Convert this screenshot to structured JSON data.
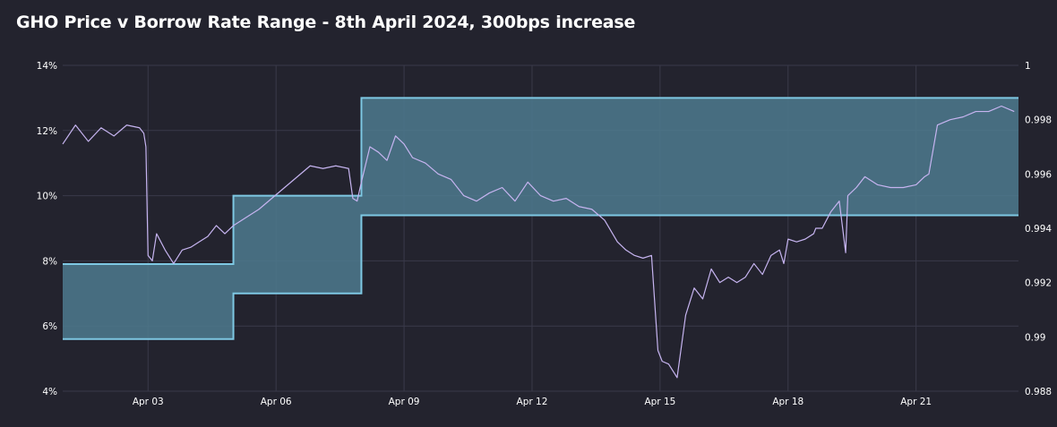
{
  "chart_data": {
    "type": "line",
    "title": "GHO Price v Borrow Rate Range - 8th April 2024, 300bps increase",
    "grid": true,
    "legend": "none",
    "x_tick_labels": [
      "Apr 03",
      "Apr 06",
      "Apr 09",
      "Apr 12",
      "Apr 15",
      "Apr 18",
      "Apr 21"
    ],
    "x_tick_days": [
      3,
      6,
      9,
      12,
      15,
      18,
      21
    ],
    "xlim_days": [
      1.0,
      23.4
    ],
    "left_axis": {
      "ylim": [
        0.04,
        0.14
      ],
      "ticks": [
        0.04,
        0.06,
        0.08,
        0.1,
        0.12,
        0.14
      ],
      "tick_labels": [
        "4%",
        "6%",
        "8%",
        "10%",
        "12%",
        "14%"
      ]
    },
    "right_axis": {
      "ylim": [
        0.988,
        1.0
      ],
      "ticks": [
        0.988,
        0.99,
        0.992,
        0.994,
        0.996,
        0.998,
        1.0
      ],
      "tick_labels": [
        "0.988",
        "0.99",
        "0.992",
        "0.994",
        "0.996",
        "0.998",
        "1"
      ]
    },
    "series": [
      {
        "type": "area-range",
        "axis": "left",
        "color": "#7ec8e3",
        "fill": "#4e7a8e",
        "x": [
          1.0,
          5.0,
          5.0,
          8.0,
          8.0,
          23.4
        ],
        "lower": [
          0.056,
          0.056,
          0.07,
          0.07,
          0.094,
          0.094
        ],
        "upper": [
          0.079,
          0.079,
          0.1,
          0.1,
          0.13,
          0.13
        ]
      },
      {
        "type": "line",
        "axis": "right",
        "color": "#c6b4f0",
        "x": [
          1.0,
          1.3,
          1.6,
          1.9,
          2.2,
          2.5,
          2.8,
          2.9,
          2.95,
          3.0,
          3.1,
          3.2,
          3.4,
          3.6,
          3.8,
          4.0,
          4.2,
          4.4,
          4.6,
          4.8,
          5.0,
          5.3,
          5.6,
          5.9,
          6.2,
          6.5,
          6.8,
          7.1,
          7.4,
          7.7,
          7.8,
          7.9,
          8.0,
          8.2,
          8.4,
          8.6,
          8.8,
          9.0,
          9.2,
          9.5,
          9.8,
          10.1,
          10.4,
          10.7,
          11.0,
          11.3,
          11.6,
          11.9,
          12.2,
          12.5,
          12.8,
          13.1,
          13.4,
          13.7,
          14.0,
          14.2,
          14.4,
          14.6,
          14.8,
          14.95,
          15.05,
          15.2,
          15.4,
          15.6,
          15.8,
          16.0,
          16.2,
          16.4,
          16.6,
          16.8,
          17.0,
          17.2,
          17.4,
          17.6,
          17.8,
          17.9,
          18.0,
          18.2,
          18.4,
          18.6,
          18.65,
          18.8,
          19.0,
          19.2,
          19.35,
          19.4,
          19.6,
          19.8,
          20.1,
          20.4,
          20.7,
          21.0,
          21.2,
          21.3,
          21.5,
          21.8,
          22.1,
          22.4,
          22.7,
          23.0,
          23.3
        ],
        "values": [
          0.9971,
          0.9978,
          0.9972,
          0.9977,
          0.9974,
          0.9978,
          0.9977,
          0.9975,
          0.997,
          0.993,
          0.9928,
          0.9938,
          0.9932,
          0.9927,
          0.9932,
          0.9933,
          0.9935,
          0.9937,
          0.9941,
          0.9938,
          0.9941,
          0.9944,
          0.9947,
          0.9951,
          0.9955,
          0.9959,
          0.9963,
          0.9962,
          0.9963,
          0.9962,
          0.9951,
          0.995,
          0.9957,
          0.997,
          0.9968,
          0.9965,
          0.9974,
          0.9971,
          0.9966,
          0.9964,
          0.996,
          0.9958,
          0.9952,
          0.995,
          0.9953,
          0.9955,
          0.995,
          0.9957,
          0.9952,
          0.995,
          0.9951,
          0.9948,
          0.9947,
          0.9943,
          0.9935,
          0.9932,
          0.993,
          0.9929,
          0.993,
          0.9895,
          0.9891,
          0.989,
          0.9885,
          0.9908,
          0.9918,
          0.9914,
          0.9925,
          0.992,
          0.9922,
          0.992,
          0.9922,
          0.9927,
          0.9923,
          0.993,
          0.9932,
          0.9927,
          0.9936,
          0.9935,
          0.9936,
          0.9938,
          0.994,
          0.994,
          0.9946,
          0.995,
          0.9931,
          0.9952,
          0.9955,
          0.9959,
          0.9956,
          0.9955,
          0.9955,
          0.9956,
          0.9959,
          0.996,
          0.9978,
          0.998,
          0.9981,
          0.9983,
          0.9983,
          0.9985,
          0.9983
        ]
      }
    ]
  }
}
